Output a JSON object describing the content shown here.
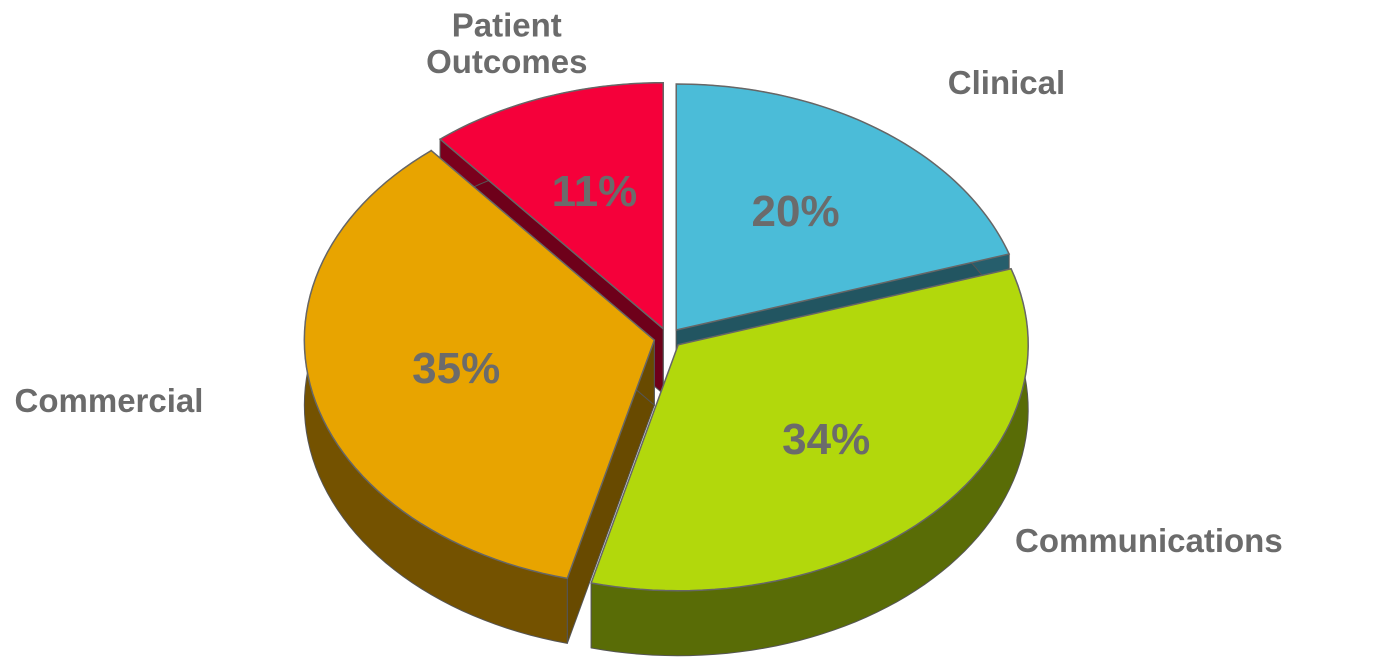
{
  "chart_data": {
    "type": "pie",
    "categories": [
      "Clinical",
      "Communications",
      "Commercial",
      "Patient Outcomes"
    ],
    "values": [
      20,
      34,
      35,
      11
    ],
    "value_labels": [
      "20%",
      "34%",
      "35%",
      "11%"
    ],
    "colors": [
      "#4bbcd8",
      "#b2d80c",
      "#e8a400",
      "#f5003a"
    ]
  }
}
